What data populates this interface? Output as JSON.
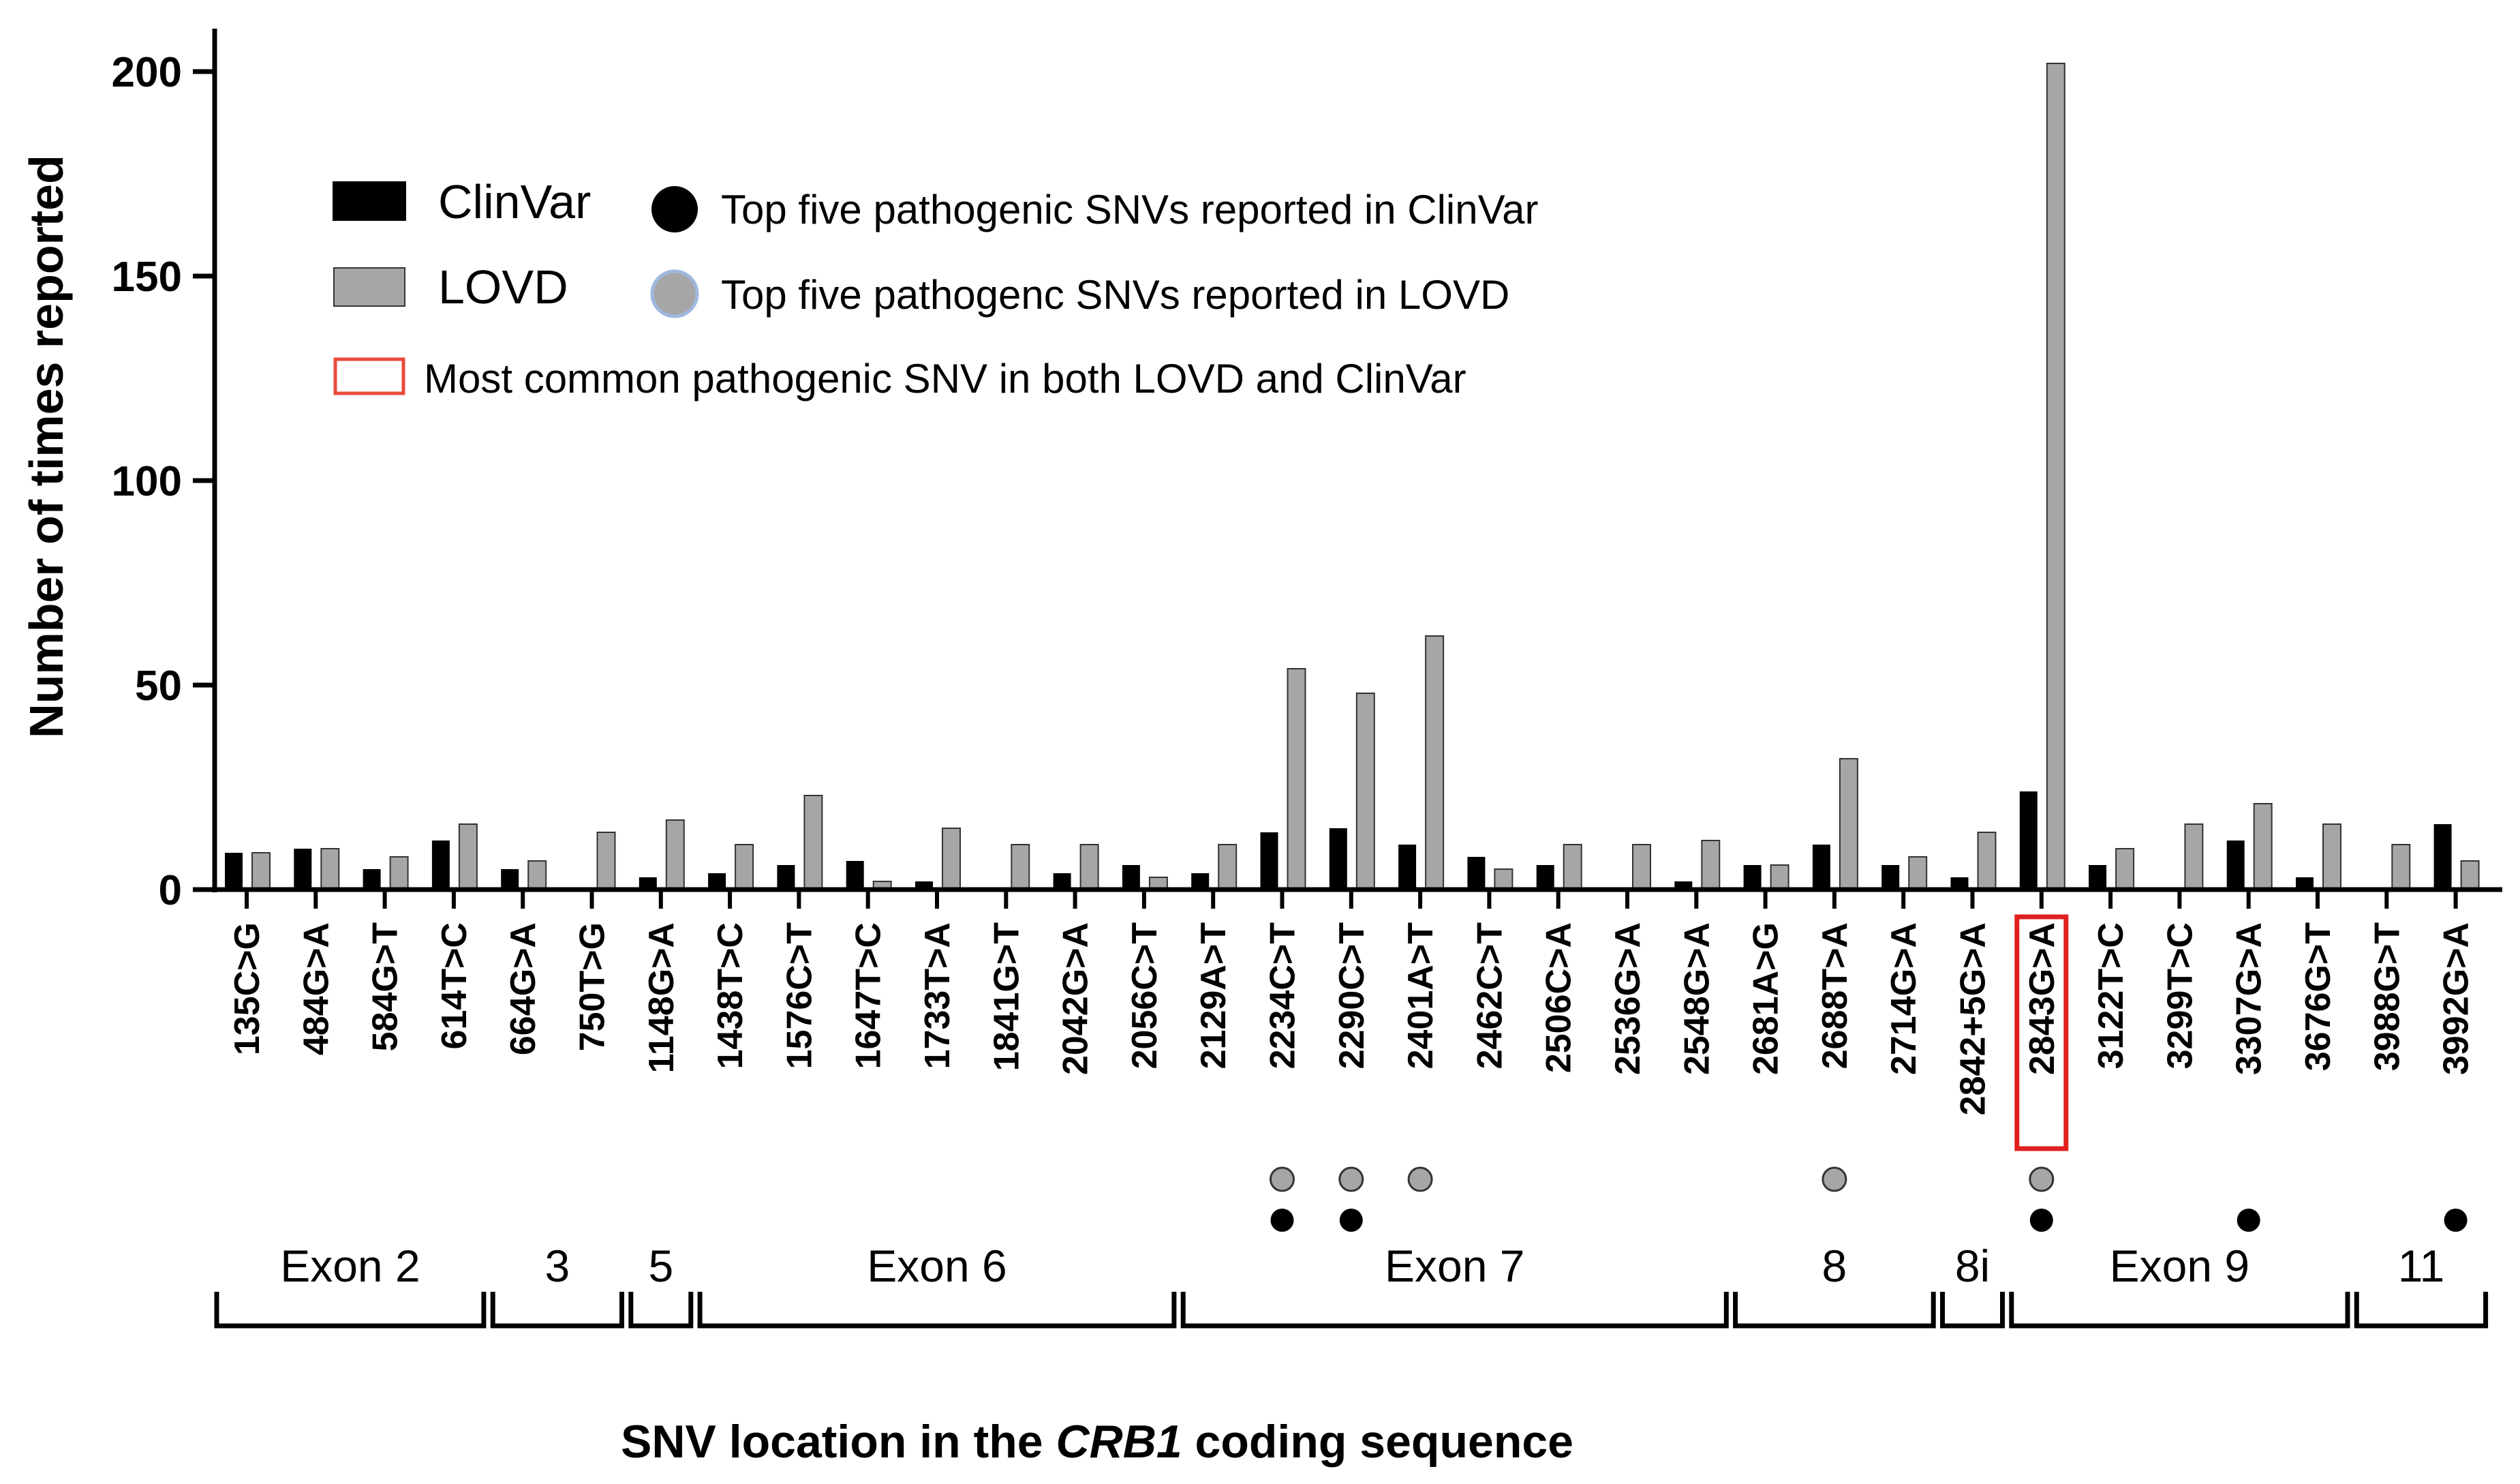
{
  "chart_data": {
    "type": "bar",
    "title": "",
    "xlabel_parts": [
      "SNV location in the ",
      "CRB1",
      " coding sequence"
    ],
    "ylabel": "Number of times reported",
    "ylim": [
      0,
      200
    ],
    "yticks": [
      0,
      50,
      100,
      150,
      200
    ],
    "categories": [
      "135C>G",
      "484G>A",
      "584G>T",
      "614T>C",
      "664G>A",
      "750T>G",
      "1148G>A",
      "1438T>C",
      "1576C>T",
      "1647T>C",
      "1733T>A",
      "1841G>T",
      "2042G>A",
      "2056C>T",
      "2129A>T",
      "2234C>T",
      "2290C>T",
      "2401A>T",
      "2462C>T",
      "2506C>A",
      "2536G>A",
      "2548G>A",
      "2681A>G",
      "2688T>A",
      "2714G>A",
      "2842+5G>A",
      "2843G>A",
      "3122T>C",
      "3299T>C",
      "3307G>A",
      "3676G>T",
      "3988G>T",
      "3992G>A"
    ],
    "series": [
      {
        "name": "ClinVar",
        "color": "#000000",
        "values": [
          9,
          10,
          5,
          12,
          5,
          0,
          3,
          4,
          6,
          7,
          2,
          0,
          4,
          6,
          4,
          14,
          15,
          11,
          8,
          6,
          0,
          2,
          6,
          11,
          6,
          3,
          24,
          6,
          0,
          12,
          3,
          0,
          16
        ]
      },
      {
        "name": "LOVD",
        "color": "#a6a6a6",
        "values": [
          9,
          10,
          8,
          16,
          7,
          14,
          17,
          11,
          23,
          2,
          15,
          11,
          11,
          3,
          11,
          54,
          48,
          62,
          5,
          11,
          11,
          12,
          6,
          32,
          8,
          14,
          202,
          10,
          16,
          21,
          16,
          11,
          7
        ]
      }
    ],
    "legend": [
      {
        "kind": "bar",
        "label": "ClinVar",
        "color": "#000000"
      },
      {
        "kind": "bar",
        "label": "LOVD",
        "color": "#a6a6a6"
      },
      {
        "kind": "dot",
        "label": "Top five pathogenic SNVs reported in ClinVar",
        "color": "#000000"
      },
      {
        "kind": "dot",
        "label": "Top five pathogenc SNVs reported in LOVD",
        "color": "#a6a6a6"
      },
      {
        "kind": "box",
        "label": "Most common pathogenic SNV in both LOVD and ClinVar",
        "color": "#e84a3c"
      }
    ],
    "legend_position": "top-left",
    "top_lovd": [
      "2234C>T",
      "2290C>T",
      "2401A>T",
      "2688T>A",
      "2843G>A"
    ],
    "top_clinvar": [
      "2234C>T",
      "2290C>T",
      "2843G>A",
      "3307G>A",
      "3992G>A"
    ],
    "highlight": "2843G>A",
    "highlight_color": "#e02020",
    "exons": [
      {
        "label": "Exon 2",
        "from": 0,
        "to": 3
      },
      {
        "label": "3",
        "from": 4,
        "to": 5
      },
      {
        "label": "5",
        "from": 6,
        "to": 6
      },
      {
        "label": "Exon 6",
        "from": 7,
        "to": 13
      },
      {
        "label": "Exon 7",
        "from": 14,
        "to": 21
      },
      {
        "label": "8",
        "from": 22,
        "to": 24
      },
      {
        "label": "8i",
        "from": 25,
        "to": 25
      },
      {
        "label": "Exon 9",
        "from": 26,
        "to": 30
      },
      {
        "label": "11",
        "from": 31,
        "to": 32
      }
    ]
  }
}
